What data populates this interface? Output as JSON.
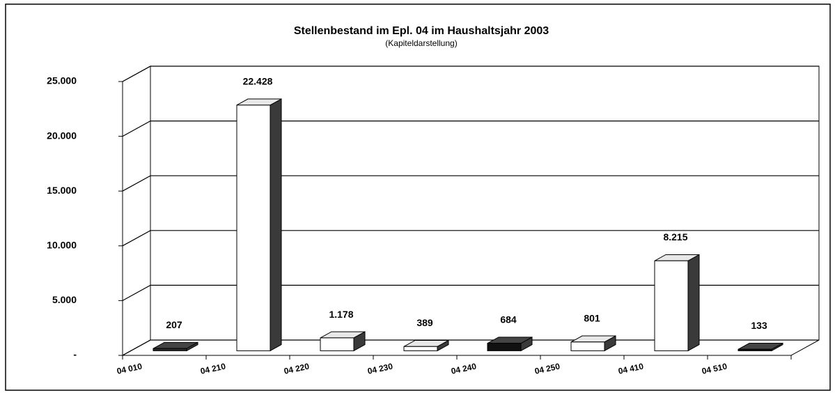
{
  "chart_data": {
    "type": "bar3d",
    "title": "Stellenbestand im Epl. 04 im Haushaltsjahr 2003",
    "subtitle": "(Kapiteldarstellung)",
    "categories": [
      "04 010",
      "04 210",
      "04 220",
      "04 230",
      "04 240",
      "04 250",
      "04 410",
      "04 510"
    ],
    "values": [
      207,
      22428,
      1178,
      389,
      684,
      801,
      8215,
      133
    ],
    "value_labels": [
      "207",
      "22.428",
      "1.178",
      "389",
      "684",
      "801",
      "8.215",
      "133"
    ],
    "colors": [
      "#2a2a2a",
      "#ffffff",
      "#ffffff",
      "#ffffff",
      "#111111",
      "#ffffff",
      "#ffffff",
      "#111111"
    ],
    "ylim": [
      0,
      25000
    ],
    "yticks": [
      {
        "value": 0,
        "label": "-"
      },
      {
        "value": 5000,
        "label": "5.000"
      },
      {
        "value": 10000,
        "label": "10.000"
      },
      {
        "value": 15000,
        "label": "15.000"
      },
      {
        "value": 20000,
        "label": "20.000"
      },
      {
        "value": 25000,
        "label": "25.000"
      }
    ],
    "grid": true
  }
}
